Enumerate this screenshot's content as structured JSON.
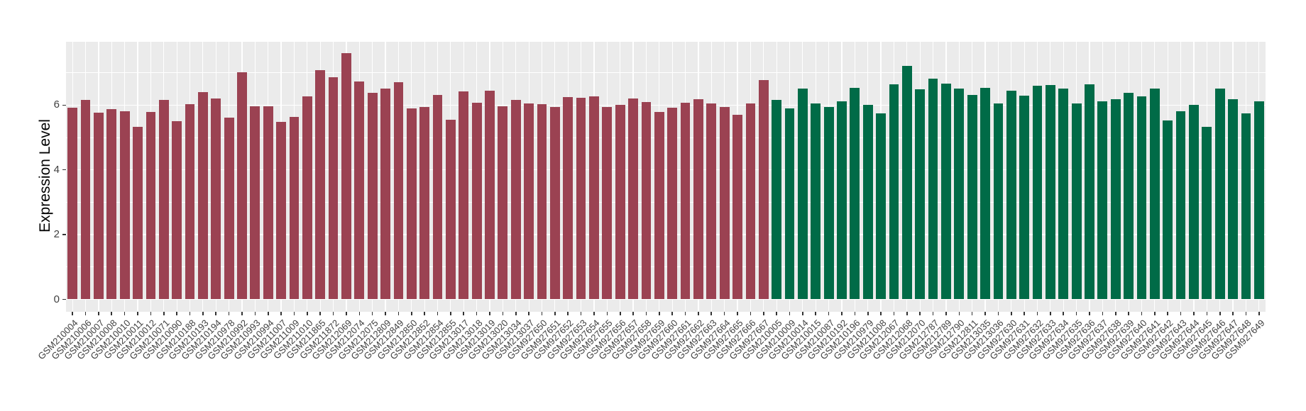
{
  "chart_data": {
    "type": "bar",
    "title": "",
    "xlabel": "",
    "ylabel": "Expression Level",
    "yticks": [
      0,
      2,
      4,
      6
    ],
    "ylim": [
      0,
      8
    ],
    "grid": "on",
    "legend": "none",
    "colors": {
      "panel_background": "#EBEBEB",
      "gridline": "#FFFFFF",
      "tick_text": "#404040",
      "axis_title": "#000000",
      "tick_mark": "#333333",
      "group1_red": "#9B4252",
      "group2_green": "#006B47"
    },
    "groups": [
      {
        "name": "group-1-red",
        "color": "#9B4252"
      },
      {
        "name": "group-2-green",
        "color": "#006B47"
      }
    ],
    "bars": [
      {
        "label": "GSM210004",
        "value": 5.91,
        "group": 0
      },
      {
        "label": "GSM210006",
        "value": 6.16,
        "group": 0
      },
      {
        "label": "GSM210007",
        "value": 5.76,
        "group": 0
      },
      {
        "label": "GSM210008",
        "value": 5.88,
        "group": 0
      },
      {
        "label": "GSM210010",
        "value": 5.8,
        "group": 0
      },
      {
        "label": "GSM210011",
        "value": 5.33,
        "group": 0
      },
      {
        "label": "GSM210012",
        "value": 5.78,
        "group": 0
      },
      {
        "label": "GSM210071",
        "value": 6.17,
        "group": 0
      },
      {
        "label": "GSM210090",
        "value": 5.5,
        "group": 0
      },
      {
        "label": "GSM210188",
        "value": 6.02,
        "group": 0
      },
      {
        "label": "GSM210193",
        "value": 6.39,
        "group": 0
      },
      {
        "label": "GSM210194",
        "value": 6.21,
        "group": 0
      },
      {
        "label": "GSM210978",
        "value": 5.61,
        "group": 0
      },
      {
        "label": "GSM210992",
        "value": 7.01,
        "group": 0
      },
      {
        "label": "GSM210993",
        "value": 5.97,
        "group": 0
      },
      {
        "label": "GSM210994",
        "value": 5.97,
        "group": 0
      },
      {
        "label": "GSM211007",
        "value": 5.49,
        "group": 0
      },
      {
        "label": "GSM211009",
        "value": 5.64,
        "group": 0
      },
      {
        "label": "GSM211010",
        "value": 6.26,
        "group": 0
      },
      {
        "label": "GSM211865",
        "value": 7.07,
        "group": 0
      },
      {
        "label": "GSM211872",
        "value": 6.86,
        "group": 0
      },
      {
        "label": "GSM212069",
        "value": 7.61,
        "group": 0
      },
      {
        "label": "GSM212074",
        "value": 6.73,
        "group": 0
      },
      {
        "label": "GSM212075",
        "value": 6.37,
        "group": 0
      },
      {
        "label": "GSM212809",
        "value": 6.5,
        "group": 0
      },
      {
        "label": "GSM212849",
        "value": 6.7,
        "group": 0
      },
      {
        "label": "GSM212850",
        "value": 5.9,
        "group": 0
      },
      {
        "label": "GSM212852",
        "value": 5.93,
        "group": 0
      },
      {
        "label": "GSM212854",
        "value": 6.32,
        "group": 0
      },
      {
        "label": "GSM212855",
        "value": 5.55,
        "group": 0
      },
      {
        "label": "GSM213017",
        "value": 6.43,
        "group": 0
      },
      {
        "label": "GSM213018",
        "value": 6.08,
        "group": 0
      },
      {
        "label": "GSM213019",
        "value": 6.44,
        "group": 0
      },
      {
        "label": "GSM213020",
        "value": 5.97,
        "group": 0
      },
      {
        "label": "GSM213034",
        "value": 6.15,
        "group": 0
      },
      {
        "label": "GSM213037",
        "value": 6.04,
        "group": 0
      },
      {
        "label": "GSM927650",
        "value": 6.02,
        "group": 0
      },
      {
        "label": "GSM927651",
        "value": 5.93,
        "group": 0
      },
      {
        "label": "GSM927652",
        "value": 6.24,
        "group": 0
      },
      {
        "label": "GSM927653",
        "value": 6.22,
        "group": 0
      },
      {
        "label": "GSM927654",
        "value": 6.27,
        "group": 0
      },
      {
        "label": "GSM927655",
        "value": 5.93,
        "group": 0
      },
      {
        "label": "GSM927656",
        "value": 6.01,
        "group": 0
      },
      {
        "label": "GSM927657",
        "value": 6.21,
        "group": 0
      },
      {
        "label": "GSM927658",
        "value": 6.1,
        "group": 0
      },
      {
        "label": "GSM927659",
        "value": 5.79,
        "group": 0
      },
      {
        "label": "GSM927660",
        "value": 5.92,
        "group": 0
      },
      {
        "label": "GSM927661",
        "value": 6.08,
        "group": 0
      },
      {
        "label": "GSM927662",
        "value": 6.19,
        "group": 0
      },
      {
        "label": "GSM927663",
        "value": 6.04,
        "group": 0
      },
      {
        "label": "GSM927664",
        "value": 5.94,
        "group": 0
      },
      {
        "label": "GSM927665",
        "value": 5.71,
        "group": 0
      },
      {
        "label": "GSM927666",
        "value": 6.06,
        "group": 0
      },
      {
        "label": "GSM927667",
        "value": 6.78,
        "group": 0
      },
      {
        "label": "GSM210005",
        "value": 6.15,
        "group": 1
      },
      {
        "label": "GSM210009",
        "value": 5.9,
        "group": 1
      },
      {
        "label": "GSM210014",
        "value": 6.5,
        "group": 1
      },
      {
        "label": "GSM210015",
        "value": 6.06,
        "group": 1
      },
      {
        "label": "GSM210087",
        "value": 5.95,
        "group": 1
      },
      {
        "label": "GSM210192",
        "value": 6.12,
        "group": 1
      },
      {
        "label": "GSM210196",
        "value": 6.53,
        "group": 1
      },
      {
        "label": "GSM210979",
        "value": 6.01,
        "group": 1
      },
      {
        "label": "GSM211008",
        "value": 5.75,
        "group": 1
      },
      {
        "label": "GSM212067",
        "value": 6.64,
        "group": 1
      },
      {
        "label": "GSM212068",
        "value": 7.21,
        "group": 1
      },
      {
        "label": "GSM212070",
        "value": 6.48,
        "group": 1
      },
      {
        "label": "GSM212787",
        "value": 6.81,
        "group": 1
      },
      {
        "label": "GSM212789",
        "value": 6.67,
        "group": 1
      },
      {
        "label": "GSM212790",
        "value": 6.5,
        "group": 1
      },
      {
        "label": "GSM212811",
        "value": 6.32,
        "group": 1
      },
      {
        "label": "GSM213035",
        "value": 6.53,
        "group": 1
      },
      {
        "label": "GSM213036",
        "value": 6.06,
        "group": 1
      },
      {
        "label": "GSM927630",
        "value": 6.44,
        "group": 1
      },
      {
        "label": "GSM927631",
        "value": 6.3,
        "group": 1
      },
      {
        "label": "GSM927632",
        "value": 6.59,
        "group": 1
      },
      {
        "label": "GSM927633",
        "value": 6.61,
        "group": 1
      },
      {
        "label": "GSM927634",
        "value": 6.5,
        "group": 1
      },
      {
        "label": "GSM927635",
        "value": 6.04,
        "group": 1
      },
      {
        "label": "GSM927636",
        "value": 6.64,
        "group": 1
      },
      {
        "label": "GSM927637",
        "value": 6.12,
        "group": 1
      },
      {
        "label": "GSM927638",
        "value": 6.19,
        "group": 1
      },
      {
        "label": "GSM927639",
        "value": 6.37,
        "group": 1
      },
      {
        "label": "GSM927640",
        "value": 6.28,
        "group": 1
      },
      {
        "label": "GSM927641",
        "value": 6.52,
        "group": 1
      },
      {
        "label": "GSM927642",
        "value": 5.53,
        "group": 1
      },
      {
        "label": "GSM927643",
        "value": 5.81,
        "group": 1
      },
      {
        "label": "GSM927644",
        "value": 6.01,
        "group": 1
      },
      {
        "label": "GSM927645",
        "value": 5.32,
        "group": 1
      },
      {
        "label": "GSM927646",
        "value": 6.52,
        "group": 1
      },
      {
        "label": "GSM927647",
        "value": 6.19,
        "group": 1
      },
      {
        "label": "GSM927648",
        "value": 5.75,
        "group": 1
      },
      {
        "label": "GSM927649",
        "value": 6.11,
        "group": 1
      }
    ]
  }
}
